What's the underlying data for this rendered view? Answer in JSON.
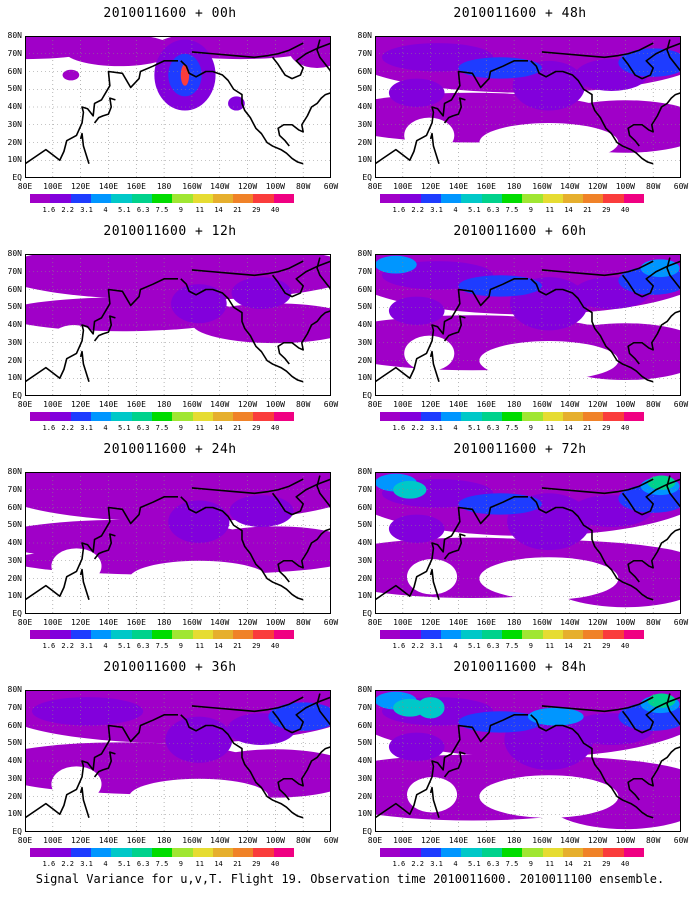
{
  "chart_data": {
    "type": "heatmap",
    "title": "Signal Variance for u,v,T. Flight 19. Observation time 2010011600. 2010011100 ensemble.",
    "x_tick_labels": [
      "80E",
      "100E",
      "120E",
      "140E",
      "160E",
      "180",
      "160W",
      "140W",
      "120W",
      "100W",
      "80W",
      "60W"
    ],
    "y_tick_labels": [
      "EQ",
      "10N",
      "20N",
      "30N",
      "40N",
      "50N",
      "60N",
      "70N",
      "80N"
    ],
    "colorbar": {
      "levels": [
        "1.6",
        "2.2",
        "3.1",
        "4",
        "5.1",
        "6.3",
        "7.5",
        "9",
        "11",
        "14",
        "21",
        "29",
        "40"
      ],
      "colors": [
        "#a000c8",
        "#8200dc",
        "#1e3cff",
        "#0096ff",
        "#00c8c8",
        "#00d28c",
        "#00dc00",
        "#a0e632",
        "#e6dc32",
        "#e6af2d",
        "#f08228",
        "#fa3c3c",
        "#f00082"
      ]
    },
    "panels": [
      {
        "title": "2010011600 + 00h",
        "lead_hours": 0
      },
      {
        "title": "2010011600 + 48h",
        "lead_hours": 48
      },
      {
        "title": "2010011600 + 12h",
        "lead_hours": 12
      },
      {
        "title": "2010011600 + 60h",
        "lead_hours": 60
      },
      {
        "title": "2010011600 + 24h",
        "lead_hours": 24
      },
      {
        "title": "2010011600 + 72h",
        "lead_hours": 72
      },
      {
        "title": "2010011600 + 36h",
        "lead_hours": 36
      },
      {
        "title": "2010011600 + 84h",
        "lead_hours": 84
      }
    ]
  }
}
